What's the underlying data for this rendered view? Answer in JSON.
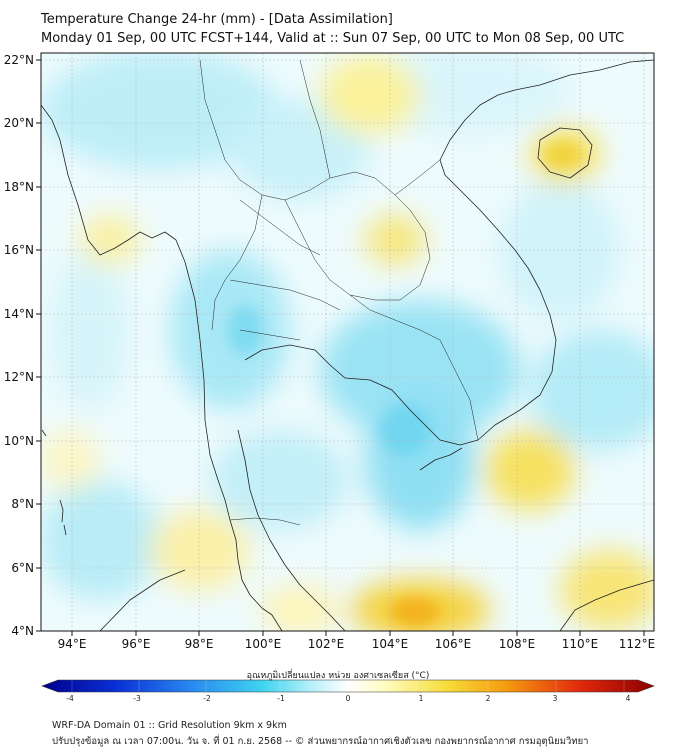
{
  "header": {
    "title_line1": "Temperature Change 24-hr (mm) - [Data Assimilation]",
    "title_line2": "Monday 01 Sep, 00 UTC FCST+144, Valid at :: Sun 07 Sep, 00 UTC to Mon 08 Sep, 00 UTC"
  },
  "map": {
    "lat_labels": [
      "22°N",
      "20°N",
      "18°N",
      "16°N",
      "14°N",
      "12°N",
      "10°N",
      "8°N",
      "6°N",
      "4°N"
    ],
    "lon_labels": [
      "94°E",
      "96°E",
      "98°E",
      "100°E",
      "102°E",
      "104°E",
      "106°E",
      "108°E",
      "110°E",
      "112°E"
    ],
    "colors": {
      "land_border": "#222222",
      "grid": "#bbbbbb",
      "neutral": "#ffffff"
    }
  },
  "colorbar": {
    "label": "อุณหภูมิเปลี่ยนแปลง หน่วย องศาเซลเซียส (°C)",
    "ticks": [
      "-4",
      "-3",
      "-2",
      "-1",
      "0",
      "1",
      "2",
      "3",
      "4"
    ],
    "cold_color": "#00008b",
    "warm_color": "#8b0000"
  },
  "footer": {
    "line1": "WRF-DA Domain 01 :: Grid Resolution 9km x 9km",
    "line2": "ปรับปรุงข้อมูล ณ เวลา 07:00น. วัน จ. ที่ 01 ก.ย. 2568 -- © ส่วนพยากรณ์อากาศเชิงตัวเลข กองพยากรณ์อากาศ กรมอุตุนิยมวิทยา"
  }
}
